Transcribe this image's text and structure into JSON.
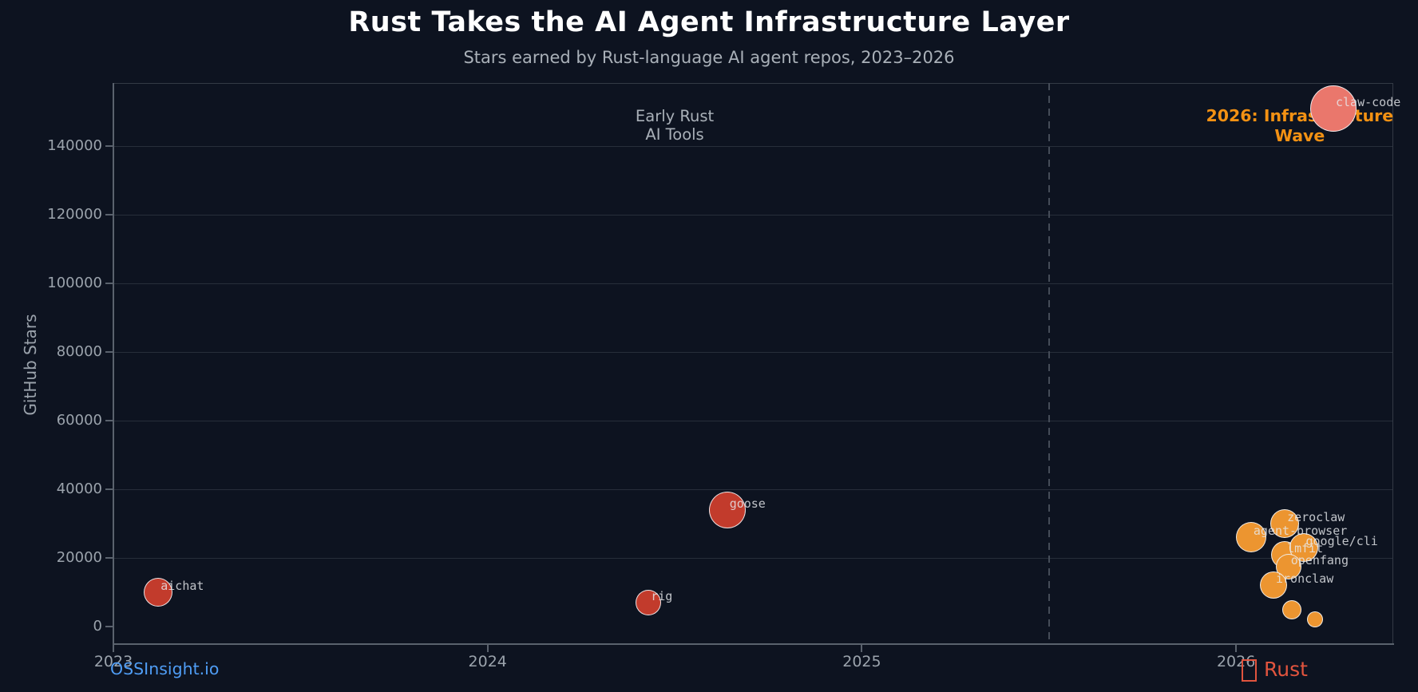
{
  "chart_data": {
    "type": "scatter",
    "title": "Rust Takes the AI Agent Infrastructure Layer",
    "subtitle": "Stars earned by Rust-language AI agent repos, 2023–2026",
    "ylabel": "GitHub Stars",
    "xlabel": "",
    "x_ticks": [
      2023,
      2024,
      2025,
      2026
    ],
    "y_ticks": [
      0,
      20000,
      40000,
      60000,
      80000,
      100000,
      120000,
      140000
    ],
    "xlim": [
      2023,
      2026.42
    ],
    "ylim": [
      -5100,
      158400
    ],
    "grid": "horizontal-only",
    "vline": {
      "year": 2025.5,
      "style": "dashed",
      "color": "#454c58"
    },
    "points": [
      {
        "name": "aichat",
        "year": 2023.12,
        "stars": 10000,
        "radius": 18,
        "color": "#c23b2c",
        "label": "aichat"
      },
      {
        "name": "rig",
        "year": 2024.43,
        "stars": 7000,
        "radius": 16,
        "color": "#c23b2c",
        "label": "rig"
      },
      {
        "name": "goose",
        "year": 2024.64,
        "stars": 34000,
        "radius": 23,
        "color": "#c23b2c",
        "label": "goose"
      },
      {
        "name": "agent-browser",
        "year": 2026.04,
        "stars": 26000,
        "radius": 19,
        "color": "#ec9530",
        "label": "agent-browser"
      },
      {
        "name": "zeroclaw",
        "year": 2026.13,
        "stars": 30000,
        "radius": 18,
        "color": "#ec9530",
        "label": "zeroclaw"
      },
      {
        "name": "lmfit",
        "year": 2026.13,
        "stars": 21000,
        "radius": 17,
        "color": "#ec9530",
        "label": "lmfit"
      },
      {
        "name": "google/cli",
        "year": 2026.18,
        "stars": 23000,
        "radius": 18,
        "color": "#ec9530",
        "label": "google/cli"
      },
      {
        "name": "openfang",
        "year": 2026.14,
        "stars": 17500,
        "radius": 16,
        "color": "#ec9530",
        "label": "openfang"
      },
      {
        "name": "ironclaw",
        "year": 2026.1,
        "stars": 12000,
        "radius": 17,
        "color": "#ec9530",
        "label": "ironclaw"
      },
      {
        "name": "unlabeled-small-1",
        "year": 2026.15,
        "stars": 5000,
        "radius": 12,
        "color": "#ec9530",
        "label": ""
      },
      {
        "name": "unlabeled-small-2",
        "year": 2026.21,
        "stars": 2000,
        "radius": 10,
        "color": "#ec9530",
        "label": ""
      },
      {
        "name": "claw-code",
        "year": 2026.26,
        "stars": 151000,
        "radius": 29,
        "color": "#ea776c",
        "label": "claw-code"
      }
    ],
    "annotations": [
      {
        "id": "early",
        "line1": "Early Rust",
        "line2": "AI Tools",
        "year": 2024.5,
        "stars": 146000,
        "color": "#a9b0b8",
        "bold": false
      },
      {
        "id": "wave",
        "line1": "2026: Infrastructure",
        "line2": "Wave",
        "year": 2026.17,
        "stars": 146000,
        "color": "#f39113",
        "bold": true
      }
    ],
    "legend": "none"
  },
  "footer": {
    "left_label": "OSSInsight.io",
    "right_label": "Rust",
    "right_icon": "crab-emoji-missing-glyph",
    "right_color": "#e1543e"
  },
  "colors": {
    "background": "#0d1320",
    "title": "#ffffff",
    "subtitle": "#a9b0b8",
    "tick_labels": "#9ba3ac",
    "grid": "#272e3a",
    "spine": "#5a626d",
    "red_bubble": "#c23b2c",
    "orange_bubble": "#ec9530",
    "salmon_bubble": "#ea776c",
    "annotation_orange": "#f39113",
    "footer_link_blue": "#4f9df5",
    "footer_rust_red": "#e1543e"
  }
}
